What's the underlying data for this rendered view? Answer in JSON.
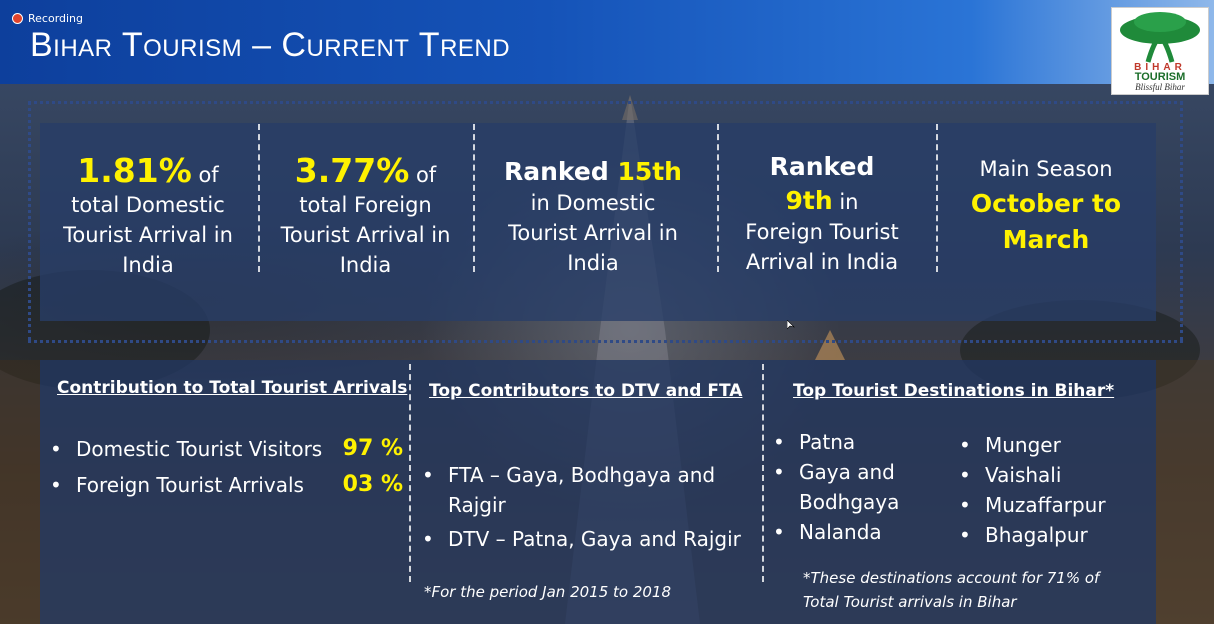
{
  "recording": {
    "label": "Recording"
  },
  "header": {
    "title": "Bihar Tourism – Current Trend"
  },
  "logo": {
    "line1": "BIHAR",
    "line2": "TOURISM",
    "tagline": "Blissful Bihar"
  },
  "stats": [
    {
      "highlight": "1.81%",
      "suffix": " of",
      "text": "total Domestic Tourist Arrival in India"
    },
    {
      "highlight": "3.77%",
      "suffix": " of",
      "text": "total Foreign Tourist Arrival in India"
    },
    {
      "prefix": "Ranked ",
      "highlight": "15th",
      "text": "in Domestic Tourist Arrival in India"
    },
    {
      "prefix": "Ranked",
      "highlight": "9th",
      "suffix": " in",
      "text": "Foreign Tourist Arrival in India"
    },
    {
      "prefix": "Main Season",
      "highlight": "October to March"
    }
  ],
  "contribution": {
    "heading": "Contribution to Total Tourist Arrivals",
    "items": [
      {
        "label": "Domestic Tourist Visitors",
        "value": "97 %"
      },
      {
        "label": "Foreign Tourist Arrivals",
        "value": "03 %"
      }
    ]
  },
  "contributors": {
    "heading": "Top Contributors  to DTV and FTA",
    "items": [
      "FTA – Gaya, Bodhgaya and Rajgir",
      "DTV – Patna, Gaya and Rajgir"
    ],
    "note": "*For the period Jan 2015 to 2018"
  },
  "destinations": {
    "heading": "Top Tourist Destinations in Bihar*",
    "col1": [
      "Patna",
      "Gaya and Bodhgaya",
      "Nalanda"
    ],
    "col2": [
      "Munger",
      "Vaishali",
      "Muzaffarpur",
      "Bhagalpur"
    ],
    "note": "*These destinations account for 71% of Total Tourist arrivals in Bihar"
  }
}
